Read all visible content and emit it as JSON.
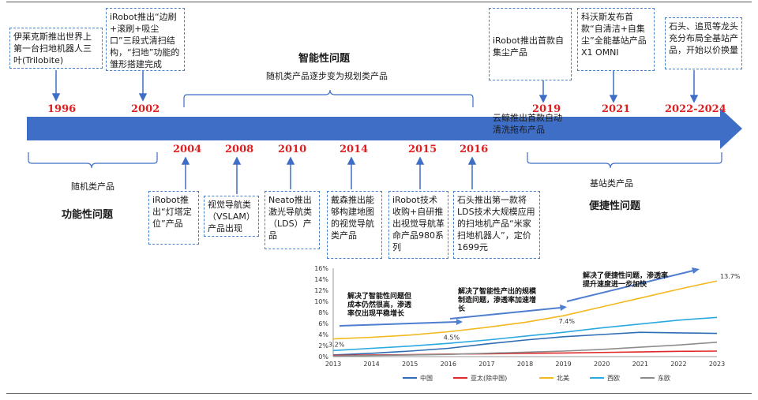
{
  "timeline": {
    "years": {
      "y1996": "1996",
      "y2002": "2002",
      "y2004": "2004",
      "y2008": "2008",
      "y2010": "2010",
      "y2014": "2014",
      "y2015": "2015",
      "y2016": "2016",
      "y2019": "2019",
      "y2021": "2021",
      "y2022_2024": "2022-2024"
    },
    "events_top": {
      "e1996": "伊莱克斯推出世界上第一台扫地机器人三叶(Trilobite)",
      "e2002": "iRobot推出“边刷+滚刷+吸尘口”三段式清扫结构，“扫地”功能的雏形搭建完成",
      "e2019a": "iRobot推出首款自集尘产品",
      "e2019b": "云鲸推出首款自动清洗拖布产品",
      "e2021": "科沃斯发布首款“自清洁+自集尘”全能基站产品X1 OMNI",
      "e2022": "石头、追觅等龙头充分布局全基站产品，开始以价换量"
    },
    "events_bottom": {
      "e2004": "iRobot推出“灯塔定位”产品",
      "e2008": "视觉导航类（VSLAM）产品出现",
      "e2010": "Neato推出激光导航类（LDS）产品",
      "e2014": "戴森推出能够构建地图的视觉导航类产品",
      "e2015": "iRobot技术收购+自研推出视觉导航革命产品980系列",
      "e2016": "石头推出第一款将LDS技术大规模应用的扫地机产品“米家扫地机器人”，定价1699元"
    },
    "phases": {
      "smart_title": "智能性问题",
      "smart_sub": "随机类产品逐步变为规划类产品",
      "random_sub": "随机类产品",
      "function_title": "功能性问题",
      "base_sub": "基站类产品",
      "convenience_title": "便捷性问题"
    }
  },
  "chart_data": {
    "type": "line",
    "x": [
      "2013",
      "2014",
      "2015",
      "2016",
      "2017",
      "2018",
      "2019",
      "2020",
      "2021",
      "2022",
      "2023"
    ],
    "ylim": [
      0,
      16
    ],
    "yticks": [
      "0%",
      "2%",
      "4%",
      "6%",
      "8%",
      "10%",
      "12%",
      "14%",
      "16%"
    ],
    "series": [
      {
        "name": "中国",
        "color": "#2e6db4",
        "values": [
          0.3,
          0.6,
          1.0,
          1.5,
          2.3,
          3.0,
          3.6,
          4.0,
          4.4,
          4.3,
          4.2
        ]
      },
      {
        "name": "亚太(除中国)",
        "color": "#e02828",
        "values": [
          0.2,
          0.3,
          0.35,
          0.45,
          0.5,
          0.6,
          0.65,
          0.75,
          0.85,
          0.95,
          1.0
        ]
      },
      {
        "name": "北美",
        "color": "#f2b81e",
        "values": [
          3.2,
          3.5,
          3.9,
          4.5,
          5.3,
          6.2,
          7.4,
          9.0,
          10.6,
          12.2,
          13.7
        ]
      },
      {
        "name": "西欧",
        "color": "#29a9e0",
        "values": [
          1.1,
          1.5,
          1.9,
          2.4,
          3.0,
          3.7,
          4.4,
          5.2,
          5.9,
          6.6,
          7.1
        ]
      },
      {
        "name": "东欧",
        "color": "#8c8c8c",
        "values": [
          0.1,
          0.2,
          0.3,
          0.4,
          0.6,
          0.8,
          1.0,
          1.3,
          1.7,
          2.1,
          2.6
        ]
      }
    ],
    "data_labels": {
      "l2013": "3.2%",
      "l2016": "4.5%",
      "l2019": "7.4%",
      "l2023": "13.7%"
    },
    "annotations": {
      "a1": "解决了智能性问题但成本仍然很高，渗透率仅出现平稳增长",
      "a2": "解决了智能性产出的规模制造问题，渗透率加速增长",
      "a3": "解决了便捷性问题，渗透率提升速度进一步加快"
    }
  }
}
